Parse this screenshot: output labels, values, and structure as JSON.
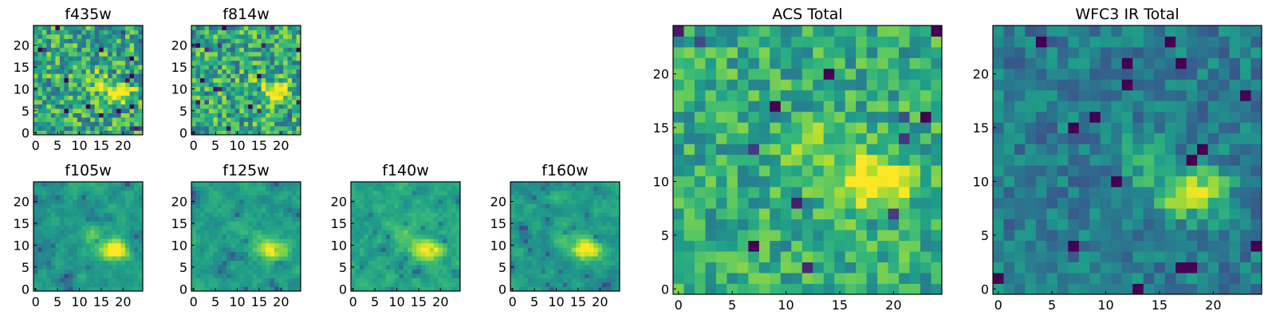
{
  "chart_data": [
    {
      "type": "heatmap",
      "title": "f435w",
      "xticks": [
        0,
        5,
        10,
        15,
        20
      ],
      "yticks": [
        0,
        5,
        10,
        15,
        20
      ],
      "xlim": [
        0,
        24
      ],
      "ylim": [
        0,
        24
      ],
      "colormap": "viridis",
      "grid_size": [
        25,
        25
      ],
      "peak": {
        "x": 19,
        "y": 9
      },
      "noise": 0.55,
      "smooth": 0,
      "base": 0.6
    },
    {
      "type": "heatmap",
      "title": "f814w",
      "xticks": [
        0,
        5,
        10,
        15,
        20
      ],
      "yticks": [
        0,
        5,
        10,
        15,
        20
      ],
      "xlim": [
        0,
        24
      ],
      "ylim": [
        0,
        24
      ],
      "colormap": "viridis",
      "grid_size": [
        25,
        25
      ],
      "peak": {
        "x": 19,
        "y": 9
      },
      "noise": 0.55,
      "smooth": 0,
      "base": 0.6
    },
    {
      "type": "heatmap",
      "title": "f105w",
      "xticks": [
        0,
        5,
        10,
        15,
        20
      ],
      "yticks": [
        0,
        5,
        10,
        15,
        20
      ],
      "xlim": [
        0,
        24
      ],
      "ylim": [
        0,
        24
      ],
      "colormap": "viridis",
      "grid_size": [
        25,
        25
      ],
      "peak": {
        "x": 18,
        "y": 9
      },
      "noise": 0.35,
      "smooth": 1,
      "base": 0.55
    },
    {
      "type": "heatmap",
      "title": "f125w",
      "xticks": [
        0,
        5,
        10,
        15,
        20
      ],
      "yticks": [
        0,
        5,
        10,
        15,
        20
      ],
      "xlim": [
        0,
        24
      ],
      "ylim": [
        0,
        24
      ],
      "colormap": "viridis",
      "grid_size": [
        25,
        25
      ],
      "peak": {
        "x": 18,
        "y": 9
      },
      "noise": 0.35,
      "smooth": 1,
      "base": 0.55
    },
    {
      "type": "heatmap",
      "title": "f140w",
      "xticks": [
        0,
        5,
        10,
        15,
        20
      ],
      "yticks": [
        0,
        5,
        10,
        15,
        20
      ],
      "xlim": [
        0,
        24
      ],
      "ylim": [
        0,
        24
      ],
      "colormap": "viridis",
      "grid_size": [
        25,
        25
      ],
      "peak": {
        "x": 17,
        "y": 9
      },
      "noise": 0.35,
      "smooth": 1,
      "base": 0.6
    },
    {
      "type": "heatmap",
      "title": "f160w",
      "xticks": [
        0,
        5,
        10,
        15,
        20
      ],
      "yticks": [
        0,
        5,
        10,
        15,
        20
      ],
      "xlim": [
        0,
        24
      ],
      "ylim": [
        0,
        24
      ],
      "colormap": "viridis",
      "grid_size": [
        25,
        25
      ],
      "peak": {
        "x": 17,
        "y": 9
      },
      "noise": 0.35,
      "smooth": 1,
      "base": 0.55
    },
    {
      "type": "heatmap",
      "title": "ACS Total",
      "xticks": [
        0,
        5,
        10,
        15,
        20
      ],
      "yticks": [
        0,
        5,
        10,
        15,
        20
      ],
      "xlim": [
        0,
        24
      ],
      "ylim": [
        0,
        24
      ],
      "colormap": "viridis",
      "grid_size": [
        25,
        25
      ],
      "peak": {
        "x": 18,
        "y": 10
      },
      "noise": 0.4,
      "smooth": 0,
      "base": 0.62
    },
    {
      "type": "heatmap",
      "title": "WFC3 IR Total",
      "xticks": [
        0,
        5,
        10,
        15,
        20
      ],
      "yticks": [
        0,
        5,
        10,
        15,
        20
      ],
      "xlim": [
        0,
        24
      ],
      "ylim": [
        0,
        24
      ],
      "colormap": "viridis",
      "grid_size": [
        25,
        25
      ],
      "peak": {
        "x": 18,
        "y": 9
      },
      "noise": 0.3,
      "smooth": 0,
      "base": 0.42
    }
  ]
}
